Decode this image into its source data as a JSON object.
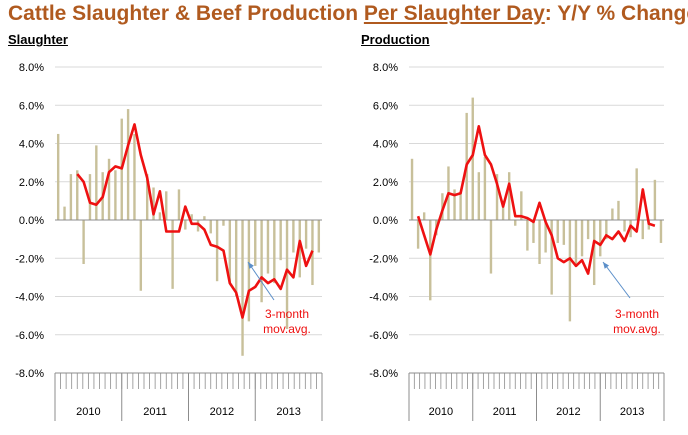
{
  "title": {
    "part1": "Cattle Slaughter & Beef Production ",
    "part2": "Per Slaughter Day",
    "part3": ": Y/Y % Change"
  },
  "colors": {
    "title": "#b05a1f",
    "bars": "#c8c09a",
    "line": "#ee1111",
    "annotation_text": "#ee1111",
    "arrow": "#5b8fc9"
  },
  "chart_data": [
    {
      "type": "bar",
      "title": "Slaughter",
      "ylim": [
        -8,
        8
      ],
      "yticks": [
        -8,
        -6,
        -4,
        -2,
        0,
        2,
        4,
        6,
        8
      ],
      "ytick_format": "%.1f%",
      "grid": true,
      "x_year_labels": [
        "2010",
        "2011",
        "2012",
        "2013"
      ],
      "bars_name": "",
      "bars": [
        4.5,
        0.7,
        2.4,
        2.6,
        -2.3,
        2.4,
        3.9,
        2.5,
        3.2,
        2.6,
        5.3,
        5.8,
        4.5,
        -3.7,
        2.4,
        1.7,
        0.4,
        1.5,
        -3.6,
        1.6,
        -0.5,
        0.3,
        -0.6,
        0.2,
        -0.7,
        -3.2,
        -0.3,
        -3.3,
        -4.0,
        -7.1,
        -5.3,
        -2.4,
        -4.3,
        -2.8,
        -3.3,
        -2.1,
        -5.7,
        -1.7,
        -3.0,
        -1.5,
        -3.4,
        -1.7
      ],
      "line_name": "3-month mov.avg.",
      "line": [
        null,
        2.4,
        2.0,
        0.9,
        0.8,
        1.2,
        2.5,
        2.8,
        2.7,
        3.9,
        5.0,
        3.4,
        2.2,
        0.3,
        1.5,
        -0.6,
        -0.6,
        -0.6,
        0.7,
        -0.2,
        -0.2,
        -0.5,
        -1.3,
        -1.4,
        -1.6,
        -3.3,
        -3.8,
        -5.1,
        -3.7,
        -3.5,
        -3.0,
        -3.3,
        -3.1,
        -3.6,
        -2.6,
        -3.0,
        -1.1,
        -2.4,
        -1.6
      ],
      "line_start_index": 2,
      "annotation": {
        "line1": "3-month",
        "line2": "mov.avg."
      }
    },
    {
      "type": "bar",
      "title": "Production",
      "ylim": [
        -8,
        8
      ],
      "yticks": [
        -8,
        -6,
        -4,
        -2,
        0,
        2,
        4,
        6,
        8
      ],
      "ytick_format": "%.1f%",
      "grid": true,
      "x_year_labels": [
        "2010",
        "2011",
        "2012",
        "2013"
      ],
      "bars_name": "",
      "bars": [
        3.2,
        -1.5,
        0.4,
        -4.2,
        -0.8,
        1.4,
        2.8,
        1.6,
        1.4,
        5.6,
        6.4,
        2.5,
        3.3,
        -2.8,
        2.4,
        1.0,
        2.5,
        -0.3,
        1.5,
        -1.6,
        -1.2,
        -2.3,
        -1.7,
        -3.9,
        -1.2,
        -1.3,
        -5.3,
        -2.3,
        -1.9,
        -1.0,
        -3.4,
        -1.9,
        -1.0,
        0.6,
        1.0,
        -0.6,
        -0.9,
        2.7,
        -1.0,
        -0.5,
        2.1,
        -1.2
      ],
      "line_name": "3-month mov.avg.",
      "line": [
        0.2,
        -0.8,
        -1.8,
        -0.5,
        0.5,
        1.4,
        1.3,
        1.4,
        2.9,
        3.4,
        4.9,
        3.4,
        2.9,
        1.9,
        0.7,
        1.9,
        0.2,
        0.2,
        0.1,
        -0.1,
        0.9,
        -0.1,
        -0.8,
        -2.0,
        -2.2,
        -2.0,
        -2.4,
        -2.1,
        -2.8,
        -1.1,
        -1.3,
        -0.8,
        -1.0,
        -0.6,
        -1.1,
        -0.3,
        -0.6,
        1.6,
        -0.2,
        -0.3
      ],
      "line_start_index": 1,
      "annotation": {
        "line1": "3-month",
        "line2": "mov.avg."
      }
    }
  ]
}
